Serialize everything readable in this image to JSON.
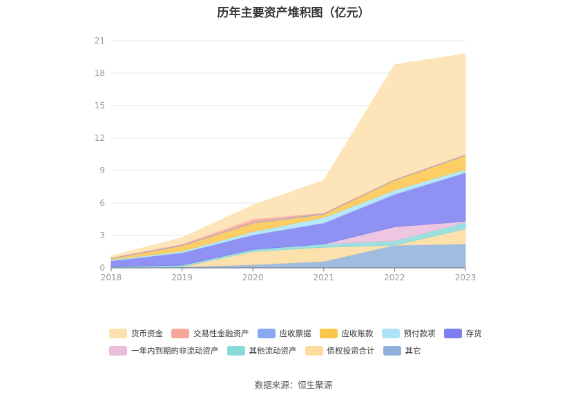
{
  "chart_data": {
    "type": "area",
    "title": "历年主要资产堆积图（亿元）",
    "x": [
      "2018",
      "2019",
      "2020",
      "2021",
      "2022",
      "2023"
    ],
    "ylim": [
      0,
      21
    ],
    "yticks": [
      0,
      3,
      6,
      9,
      12,
      15,
      18,
      21
    ],
    "grid": true,
    "legend_position": "bottom",
    "series": [
      {
        "name": "其它",
        "color": "#8fb0dc",
        "values": [
          0.05,
          0.1,
          0.3,
          0.6,
          2.1,
          2.2
        ]
      },
      {
        "name": "债权投资合计",
        "color": "#fddc9e",
        "values": [
          0.0,
          0.0,
          1.2,
          1.3,
          0.0,
          1.4
        ]
      },
      {
        "name": "其他流动资产",
        "color": "#8ad9d9",
        "values": [
          0.05,
          0.15,
          0.2,
          0.3,
          0.4,
          0.6
        ]
      },
      {
        "name": "一年内到期的非流动资产",
        "color": "#ebbcdc",
        "values": [
          0.0,
          0.0,
          0.0,
          0.0,
          1.3,
          0.1
        ]
      },
      {
        "name": "存货",
        "color": "#7b7ff0",
        "values": [
          0.55,
          1.15,
          1.35,
          1.95,
          3.0,
          4.5
        ]
      },
      {
        "name": "预付款项",
        "color": "#ace3f7",
        "values": [
          0.1,
          0.15,
          0.3,
          0.5,
          0.4,
          0.3
        ]
      },
      {
        "name": "应收账款",
        "color": "#fcc64a",
        "values": [
          0.1,
          0.5,
          0.8,
          0.3,
          0.9,
          1.3
        ]
      },
      {
        "name": "应收票据",
        "color": "#88a8f2",
        "values": [
          0.05,
          0.05,
          0.05,
          0.05,
          0.05,
          0.05
        ]
      },
      {
        "name": "交易性金融资产",
        "color": "#f7a69a",
        "values": [
          0.05,
          0.1,
          0.3,
          0.1,
          0.05,
          0.05
        ]
      },
      {
        "name": "货币资金",
        "color": "#fde1ad",
        "values": [
          0.15,
          0.6,
          1.3,
          3.0,
          10.6,
          9.3
        ]
      }
    ],
    "legend_order": [
      "货币资金",
      "交易性金融资产",
      "应收票据",
      "应收账款",
      "预付款项",
      "存货",
      "一年内到期的非流动资产",
      "其他流动资产",
      "债权投资合计",
      "其它"
    ]
  },
  "source": "数据来源：恒生聚源"
}
